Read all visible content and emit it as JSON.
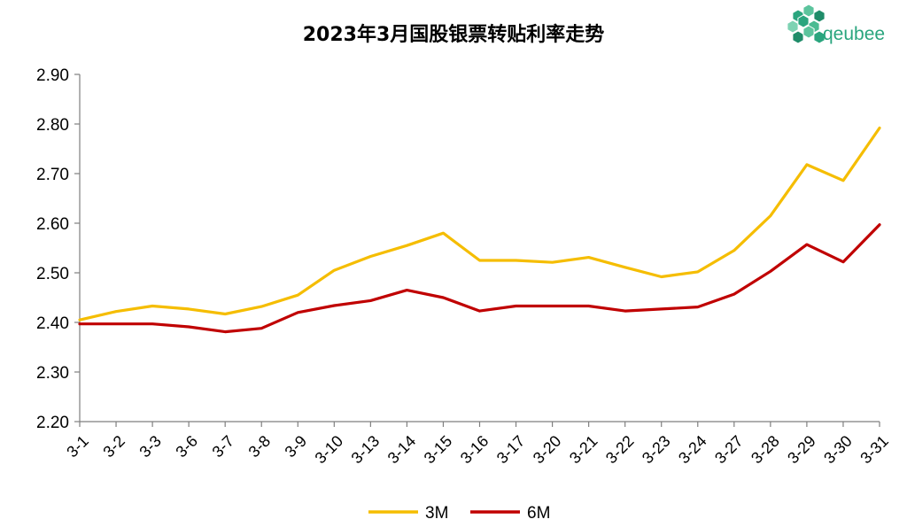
{
  "chart_data": {
    "type": "line",
    "title": "2023年3月国股银票转贴利率走势",
    "categories": [
      "3-1",
      "3-2",
      "3-3",
      "3-6",
      "3-7",
      "3-8",
      "3-9",
      "3-10",
      "3-13",
      "3-14",
      "3-15",
      "3-16",
      "3-17",
      "3-20",
      "3-21",
      "3-22",
      "3-23",
      "3-24",
      "3-27",
      "3-28",
      "3-29",
      "3-30",
      "3-31"
    ],
    "series": [
      {
        "name": "3M",
        "color": "#f5bd00",
        "values": [
          2.405,
          2.422,
          2.433,
          2.427,
          2.417,
          2.432,
          2.455,
          2.505,
          2.533,
          2.555,
          2.58,
          2.525,
          2.525,
          2.521,
          2.531,
          2.511,
          2.492,
          2.502,
          2.545,
          2.615,
          2.718,
          2.686,
          2.792
        ]
      },
      {
        "name": "6M",
        "color": "#c00000",
        "values": [
          2.397,
          2.397,
          2.397,
          2.391,
          2.381,
          2.388,
          2.42,
          2.434,
          2.444,
          2.465,
          2.45,
          2.423,
          2.433,
          2.433,
          2.433,
          2.423,
          2.427,
          2.431,
          2.457,
          2.503,
          2.557,
          2.522,
          2.597
        ]
      }
    ],
    "ylim": [
      2.2,
      2.9
    ],
    "yticks": [
      "2.20",
      "2.30",
      "2.40",
      "2.50",
      "2.60",
      "2.70",
      "2.80",
      "2.90"
    ],
    "grid": false,
    "legend": "bottom-center"
  },
  "logo": {
    "text": "qeubee",
    "color": "#2aa57e",
    "icon": "cube-cluster-icon"
  }
}
